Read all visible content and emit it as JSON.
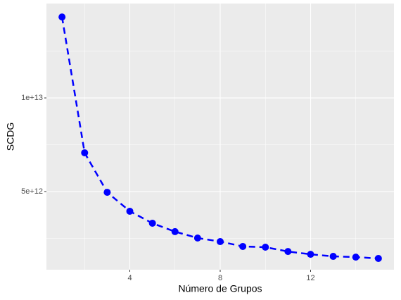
{
  "chart_data": {
    "type": "line",
    "x_label": "Número de Grupos",
    "y_label": "SCDG",
    "x": [
      1,
      2,
      3,
      4,
      5,
      6,
      7,
      8,
      9,
      10,
      11,
      12,
      13,
      14,
      15
    ],
    "series": [
      {
        "color": "#0000ff",
        "values": [
          14320000000000,
          7070000000000,
          4960000000000,
          3950000000000,
          3310000000000,
          2860000000000,
          2520000000000,
          2330000000000,
          2070000000000,
          2030000000000,
          1800000000000,
          1650000000000,
          1540000000000,
          1500000000000,
          1430000000000
        ]
      }
    ],
    "xlim": [
      0.31,
      15.69
    ],
    "xticks": [
      4,
      8,
      12
    ],
    "minor_xticks": [
      2,
      6,
      10,
      14
    ],
    "ylim": [
      827000000000,
      15040000000000
    ],
    "yticks": [
      {
        "value": 5000000000000,
        "label": "5e+12"
      },
      {
        "value": 10000000000000,
        "label": "1e+13"
      }
    ],
    "minor_yticks": [
      2500000000000,
      7500000000000,
      12500000000000
    ],
    "grid": true
  }
}
